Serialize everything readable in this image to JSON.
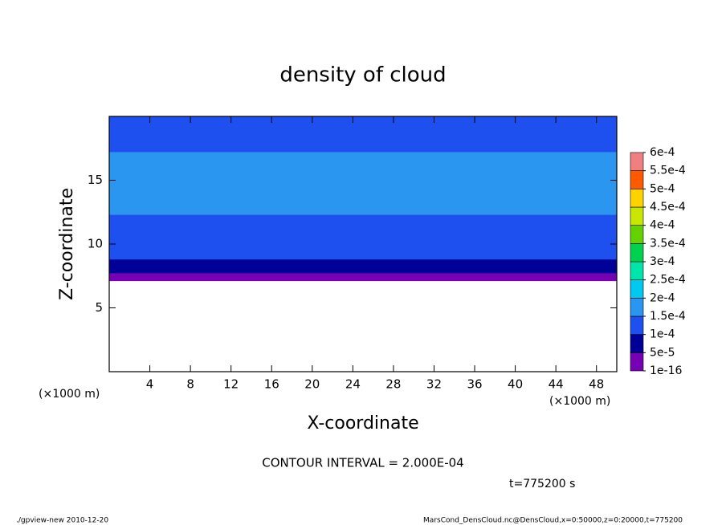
{
  "chart_data": {
    "type": "contour",
    "title": "density of cloud",
    "x_label": "X-coordinate",
    "y_label": "Z-coordinate",
    "x_unit_left": "(×1000 m)",
    "x_unit_right": "(×1000 m)",
    "xlim": [
      0,
      50
    ],
    "xticks": [
      4,
      8,
      12,
      16,
      20,
      24,
      28,
      32,
      36,
      40,
      44,
      48
    ],
    "ylim": [
      0,
      20
    ],
    "yticks": [
      5,
      10,
      15
    ],
    "z_edges": [
      7.1,
      7.7,
      8.8,
      12.3,
      17.2,
      20
    ],
    "values": [
      3e-05,
      8e-05,
      0.000125,
      0.00017,
      0.000125
    ],
    "colorbar": {
      "ticks": [
        {
          "value": 1e-16,
          "label": "1e-16"
        },
        {
          "value": 5e-05,
          "label": "5e-5"
        },
        {
          "value": 0.0001,
          "label": "1e-4"
        },
        {
          "value": 0.00015,
          "label": "1.5e-4"
        },
        {
          "value": 0.0002,
          "label": "2e-4"
        },
        {
          "value": 0.00025,
          "label": "2.5e-4"
        },
        {
          "value": 0.0003,
          "label": "3e-4"
        },
        {
          "value": 0.00035,
          "label": "3.5e-4"
        },
        {
          "value": 0.0004,
          "label": "4e-4"
        },
        {
          "value": 0.00045,
          "label": "4.5e-4"
        },
        {
          "value": 0.0005,
          "label": "5e-4"
        },
        {
          "value": 0.00055,
          "label": "5.5e-4"
        },
        {
          "value": 0.0006,
          "label": "6e-4"
        }
      ],
      "colors": [
        "#7800b4",
        "#000096",
        "#1e50f0",
        "#2a96f0",
        "#00c8f0",
        "#00e6aa",
        "#00d250",
        "#64d200",
        "#c8e600",
        "#ffd200",
        "#ff5a00",
        "#f08080"
      ]
    },
    "contour_interval": "CONTOUR INTERVAL = 2.000E-04",
    "time_label": "t=775200 s",
    "footer_left": "./gpview-new  2010-12-20",
    "footer_right": "MarsCond_DensCloud.nc@DensCloud,x=0:50000,z=0:20000,t=775200"
  }
}
